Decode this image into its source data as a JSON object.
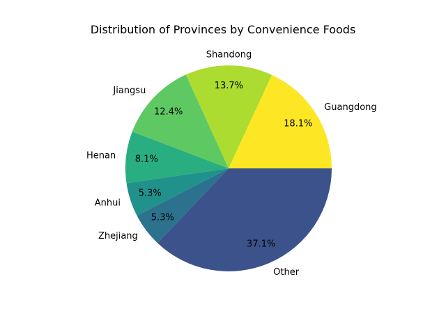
{
  "chart_data": {
    "type": "pie",
    "title": "Distribution of Provinces by Convenience Foods",
    "labels": [
      "Guangdong",
      "Shandong",
      "Jiangsu",
      "Henan",
      "Anhui",
      "Zhejiang",
      "Other"
    ],
    "values": [
      18.1,
      13.7,
      12.4,
      8.1,
      5.3,
      5.3,
      37.1
    ],
    "value_labels": [
      "18.1%",
      "13.7%",
      "12.4%",
      "8.1%",
      "5.3%",
      "5.3%",
      "37.1%"
    ],
    "colors": [
      "#fde725",
      "#addc30",
      "#5ec962",
      "#28ae80",
      "#21918c",
      "#2c728e",
      "#3b528b"
    ],
    "start_angle_deg": 0,
    "direction": "counterclockwise"
  }
}
